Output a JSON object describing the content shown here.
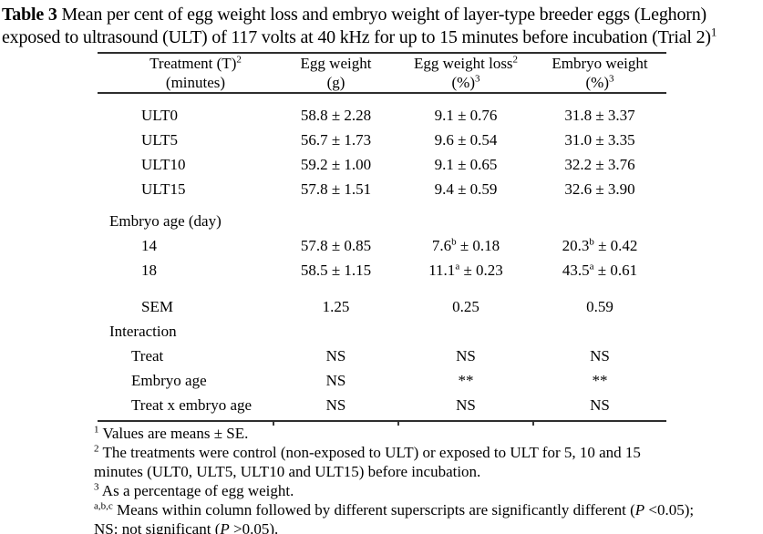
{
  "title": {
    "bold": "Table 3",
    "text": " Mean per cent of egg weight loss and embryo weight of layer-type breeder eggs (Leghorn) exposed to ultrasound (ULT) of 117 volts at 40 kHz for up to 15 minutes before incubation (Trial 2)",
    "sup": "1"
  },
  "table": {
    "header": {
      "cols": [
        {
          "l1": "Treatment (T)",
          "l1s": "2",
          "l2": "(minutes)",
          "l2s": ""
        },
        {
          "l1": "Egg weight",
          "l1s": "",
          "l2": "(g)",
          "l2s": ""
        },
        {
          "l1": "Egg weight loss",
          "l1s": "2",
          "l2": "(%)",
          "l2s": "3"
        },
        {
          "l1": "Embryo weight",
          "l1s": "",
          "l2": "(%)",
          "l2s": "3"
        }
      ]
    },
    "rows": [
      {
        "t": "data",
        "ind": 2,
        "label": "ULT0",
        "cells": [
          [
            "58.8",
            "",
            " ± 2.28"
          ],
          [
            "9.1",
            "",
            " ± 0.76"
          ],
          [
            "31.8",
            "",
            " ± 3.37"
          ]
        ]
      },
      {
        "t": "data",
        "ind": 2,
        "label": "ULT5",
        "cells": [
          [
            "56.7",
            "",
            " ± 1.73"
          ],
          [
            "9.6",
            "",
            " ± 0.54"
          ],
          [
            "31.0",
            "",
            " ± 3.35"
          ]
        ]
      },
      {
        "t": "data",
        "ind": 2,
        "label": "ULT10",
        "cells": [
          [
            "59.2",
            "",
            " ± 1.00"
          ],
          [
            "9.1",
            "",
            " ± 0.65"
          ],
          [
            "32.2",
            "",
            " ± 3.76"
          ]
        ]
      },
      {
        "t": "data",
        "ind": 2,
        "label": "ULT15",
        "cells": [
          [
            "57.8",
            "",
            " ± 1.51"
          ],
          [
            "9.4",
            "",
            " ± 0.59"
          ],
          [
            "32.6",
            "",
            " ± 3.90"
          ]
        ]
      },
      {
        "t": "spacer",
        "h": 8
      },
      {
        "t": "section",
        "ind": 0,
        "label": "Embryo age (day)"
      },
      {
        "t": "data",
        "ind": 2,
        "label": "14",
        "cells": [
          [
            "57.8",
            "",
            " ± 0.85"
          ],
          [
            "7.6",
            "b",
            " ± 0.18"
          ],
          [
            "20.3",
            "b",
            " ± 0.42"
          ]
        ]
      },
      {
        "t": "data",
        "ind": 2,
        "label": "18",
        "cells": [
          [
            "58.5",
            "",
            " ± 1.15"
          ],
          [
            "11.1",
            "a",
            " ± 0.23"
          ],
          [
            "43.5",
            "a",
            " ± 0.61"
          ]
        ]
      },
      {
        "t": "spacer",
        "h": 13
      },
      {
        "t": "data",
        "ind": 2,
        "label": "SEM",
        "cells": [
          [
            "1.25",
            "",
            ""
          ],
          [
            "0.25",
            "",
            ""
          ],
          [
            "0.59",
            "",
            ""
          ]
        ]
      },
      {
        "t": "section",
        "ind": 0,
        "label": "Interaction"
      },
      {
        "t": "data",
        "ind": 1,
        "label": "Treat",
        "cells": [
          [
            "NS",
            "",
            ""
          ],
          [
            "NS",
            "",
            ""
          ],
          [
            "NS",
            "",
            ""
          ]
        ]
      },
      {
        "t": "data",
        "ind": 1,
        "label": "Embryo age",
        "cells": [
          [
            "NS",
            "",
            ""
          ],
          [
            "**",
            "",
            ""
          ],
          [
            "**",
            "",
            ""
          ]
        ]
      },
      {
        "t": "data",
        "ind": 1,
        "label": "Treat x embryo age",
        "cells": [
          [
            "NS",
            "",
            ""
          ],
          [
            "NS",
            "",
            ""
          ],
          [
            "NS",
            "",
            ""
          ]
        ]
      }
    ]
  },
  "footnotes": [
    {
      "segs": [
        {
          "st": "sup",
          "t": "1"
        },
        {
          "st": "",
          "t": " Values are means ± SE."
        }
      ]
    },
    {
      "segs": [
        {
          "st": "sup",
          "t": "2"
        },
        {
          "st": "",
          "t": " The treatments were control (non-exposed to ULT) or exposed to ULT for 5, 10 and 15"
        }
      ]
    },
    {
      "segs": [
        {
          "st": "",
          "t": "minutes (ULT0, ULT5, ULT10 and ULT15) before incubation."
        }
      ]
    },
    {
      "segs": [
        {
          "st": "sup",
          "t": "3"
        },
        {
          "st": "",
          "t": " As a percentage of egg weight."
        }
      ]
    },
    {
      "segs": [
        {
          "st": "sup",
          "t": "a,b,c"
        },
        {
          "st": "",
          "t": " Means within column followed by different superscripts are significantly different ("
        },
        {
          "st": "i",
          "t": "P"
        },
        {
          "st": "",
          "t": " <0.05);"
        }
      ]
    },
    {
      "segs": [
        {
          "st": "",
          "t": "NS: not significant ("
        },
        {
          "st": "i",
          "t": "P"
        },
        {
          "st": "",
          "t": " >0.05)."
        }
      ]
    }
  ],
  "colors": {
    "text": "#000000",
    "rule": "#2e2e2e",
    "background": "#ffffff"
  }
}
